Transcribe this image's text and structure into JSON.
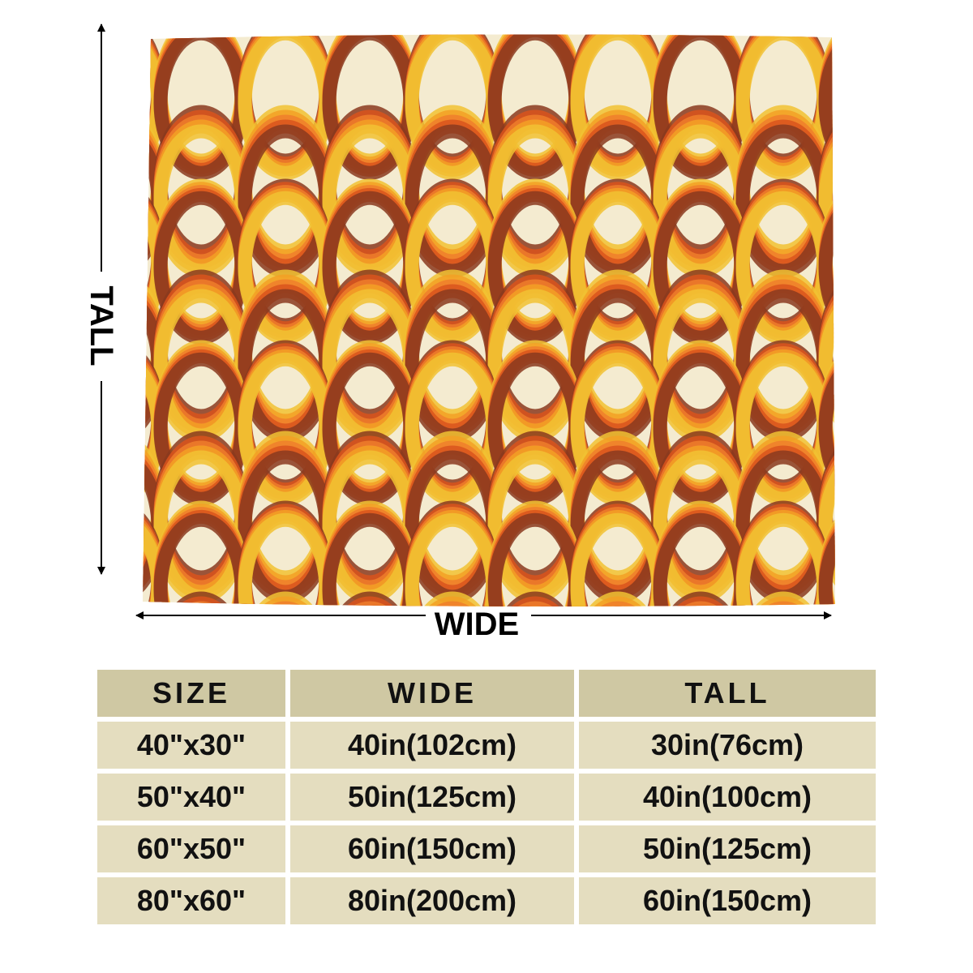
{
  "dimension_labels": {
    "tall": "TALL",
    "wide": "WIDE"
  },
  "product": {
    "pattern_icon": "retro-rings-pattern",
    "colors": {
      "cream": "#f4ebd0",
      "brown": "#8a3a1e",
      "dark_orange": "#d9531c",
      "orange": "#ee7e2c",
      "amber": "#f3a024",
      "yellow": "#f1c232"
    }
  },
  "size_table": {
    "colors": {
      "header_bg": "#cfc8a3",
      "cell_bg": "#e4ddbf"
    },
    "headers": [
      "SIZE",
      "WIDE",
      "TALL"
    ],
    "rows": [
      [
        "40\"x30\"",
        "40in(102cm)",
        "30in(76cm)"
      ],
      [
        "50\"x40\"",
        "50in(125cm)",
        "40in(100cm)"
      ],
      [
        "60\"x50\"",
        "60in(150cm)",
        "50in(125cm)"
      ],
      [
        "80\"x60\"",
        "80in(200cm)",
        "60in(150cm)"
      ]
    ]
  }
}
